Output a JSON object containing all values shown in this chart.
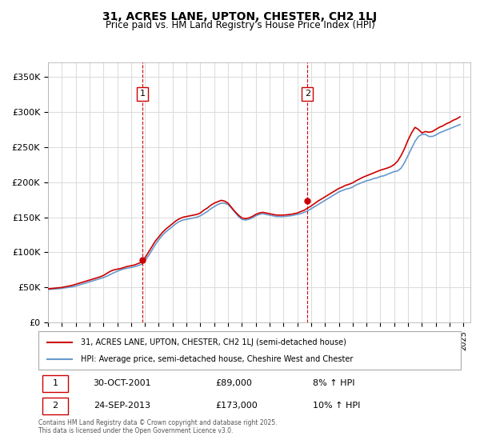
{
  "title_line1": "31, ACRES LANE, UPTON, CHESTER, CH2 1LJ",
  "title_line2": "Price paid vs. HM Land Registry's House Price Index (HPI)",
  "ylabel": "",
  "xlabel": "",
  "background_color": "#ffffff",
  "plot_bg_color": "#ffffff",
  "grid_color": "#dddddd",
  "hpi_color": "#6699cc",
  "price_color": "#cc0000",
  "vline_color": "#cc0000",
  "ylim": [
    0,
    370000
  ],
  "yticks": [
    0,
    50000,
    100000,
    150000,
    200000,
    250000,
    300000,
    350000
  ],
  "ytick_labels": [
    "£0",
    "£50K",
    "£100K",
    "£150K",
    "£200K",
    "£250K",
    "£300K",
    "£350K"
  ],
  "sale1_date": 2001.83,
  "sale1_price": 89000,
  "sale1_label": "1",
  "sale2_date": 2013.73,
  "sale2_price": 173000,
  "sale2_label": "2",
  "legend_line1": "31, ACRES LANE, UPTON, CHESTER, CH2 1LJ (semi-detached house)",
  "legend_line2": "HPI: Average price, semi-detached house, Cheshire West and Chester",
  "annotation1_date": "30-OCT-2001",
  "annotation1_price": "£89,000",
  "annotation1_hpi": "8% ↑ HPI",
  "annotation2_date": "24-SEP-2013",
  "annotation2_price": "£173,000",
  "annotation2_hpi": "10% ↑ HPI",
  "footnote": "Contains HM Land Registry data © Crown copyright and database right 2025.\nThis data is licensed under the Open Government Licence v3.0.",
  "hpi_data_x": [
    1995.0,
    1995.25,
    1995.5,
    1995.75,
    1996.0,
    1996.25,
    1996.5,
    1996.75,
    1997.0,
    1997.25,
    1997.5,
    1997.75,
    1998.0,
    1998.25,
    1998.5,
    1998.75,
    1999.0,
    1999.25,
    1999.5,
    1999.75,
    2000.0,
    2000.25,
    2000.5,
    2000.75,
    2001.0,
    2001.25,
    2001.5,
    2001.75,
    2002.0,
    2002.25,
    2002.5,
    2002.75,
    2003.0,
    2003.25,
    2003.5,
    2003.75,
    2004.0,
    2004.25,
    2004.5,
    2004.75,
    2005.0,
    2005.25,
    2005.5,
    2005.75,
    2006.0,
    2006.25,
    2006.5,
    2006.75,
    2007.0,
    2007.25,
    2007.5,
    2007.75,
    2008.0,
    2008.25,
    2008.5,
    2008.75,
    2009.0,
    2009.25,
    2009.5,
    2009.75,
    2010.0,
    2010.25,
    2010.5,
    2010.75,
    2011.0,
    2011.25,
    2011.5,
    2011.75,
    2012.0,
    2012.25,
    2012.5,
    2012.75,
    2013.0,
    2013.25,
    2013.5,
    2013.75,
    2014.0,
    2014.25,
    2014.5,
    2014.75,
    2015.0,
    2015.25,
    2015.5,
    2015.75,
    2016.0,
    2016.25,
    2016.5,
    2016.75,
    2017.0,
    2017.25,
    2017.5,
    2017.75,
    2018.0,
    2018.25,
    2018.5,
    2018.75,
    2019.0,
    2019.25,
    2019.5,
    2019.75,
    2020.0,
    2020.25,
    2020.5,
    2020.75,
    2021.0,
    2021.25,
    2021.5,
    2021.75,
    2022.0,
    2022.25,
    2022.5,
    2022.75,
    2023.0,
    2023.25,
    2023.5,
    2023.75,
    2024.0,
    2024.25,
    2024.5,
    2024.75
  ],
  "hpi_data_y": [
    47000,
    47500,
    47800,
    48200,
    48800,
    49500,
    50200,
    51000,
    52000,
    53500,
    55000,
    56500,
    58000,
    59500,
    61000,
    62500,
    64000,
    66000,
    68500,
    71000,
    73000,
    75000,
    76500,
    77500,
    78500,
    79500,
    81000,
    83000,
    88000,
    95000,
    103000,
    111000,
    118000,
    124000,
    129000,
    133000,
    137000,
    141000,
    144000,
    146000,
    147000,
    148000,
    149000,
    150000,
    152000,
    155000,
    158000,
    162000,
    165000,
    168000,
    170000,
    170000,
    168000,
    163000,
    157000,
    151000,
    147000,
    146000,
    147000,
    149000,
    152000,
    154000,
    155000,
    154000,
    153000,
    152000,
    151000,
    151000,
    151000,
    151500,
    152000,
    153000,
    154000,
    155000,
    157000,
    159000,
    162000,
    165000,
    168000,
    171000,
    174000,
    177000,
    180000,
    183000,
    186000,
    188000,
    190000,
    191000,
    193000,
    196000,
    198000,
    200000,
    202000,
    203000,
    205000,
    206000,
    208000,
    209000,
    211000,
    213000,
    215000,
    216000,
    220000,
    228000,
    238000,
    248000,
    258000,
    265000,
    268000,
    268000,
    265000,
    265000,
    267000,
    270000,
    272000,
    274000,
    276000,
    278000,
    280000,
    282000
  ],
  "price_data_x": [
    1995.0,
    1995.25,
    1995.5,
    1995.75,
    1996.0,
    1996.25,
    1996.5,
    1996.75,
    1997.0,
    1997.25,
    1997.5,
    1997.75,
    1998.0,
    1998.25,
    1998.5,
    1998.75,
    1999.0,
    1999.25,
    1999.5,
    1999.75,
    2000.0,
    2000.25,
    2000.5,
    2000.75,
    2001.0,
    2001.25,
    2001.5,
    2001.75,
    2002.0,
    2002.25,
    2002.5,
    2002.75,
    2003.0,
    2003.25,
    2003.5,
    2003.75,
    2004.0,
    2004.25,
    2004.5,
    2004.75,
    2005.0,
    2005.25,
    2005.5,
    2005.75,
    2006.0,
    2006.25,
    2006.5,
    2006.75,
    2007.0,
    2007.25,
    2007.5,
    2007.75,
    2008.0,
    2008.25,
    2008.5,
    2008.75,
    2009.0,
    2009.25,
    2009.5,
    2009.75,
    2010.0,
    2010.25,
    2010.5,
    2010.75,
    2011.0,
    2011.25,
    2011.5,
    2011.75,
    2012.0,
    2012.25,
    2012.5,
    2012.75,
    2013.0,
    2013.25,
    2013.5,
    2013.75,
    2014.0,
    2014.25,
    2014.5,
    2014.75,
    2015.0,
    2015.25,
    2015.5,
    2015.75,
    2016.0,
    2016.25,
    2016.5,
    2016.75,
    2017.0,
    2017.25,
    2017.5,
    2017.75,
    2018.0,
    2018.25,
    2018.5,
    2018.75,
    2019.0,
    2019.25,
    2019.5,
    2019.75,
    2020.0,
    2020.25,
    2020.5,
    2020.75,
    2021.0,
    2021.25,
    2021.5,
    2021.75,
    2022.0,
    2022.25,
    2022.5,
    2022.75,
    2023.0,
    2023.25,
    2023.5,
    2023.75,
    2024.0,
    2024.25,
    2024.5,
    2024.75
  ],
  "price_data_y": [
    48000,
    48500,
    49000,
    49500,
    50000,
    51000,
    52000,
    53000,
    54500,
    56000,
    57500,
    59000,
    60500,
    62000,
    63500,
    65000,
    67000,
    70000,
    73000,
    75000,
    76000,
    77000,
    78500,
    80000,
    81000,
    82000,
    84000,
    86000,
    92000,
    100000,
    108000,
    116000,
    122000,
    128000,
    133000,
    137000,
    141000,
    145000,
    148000,
    150000,
    151000,
    152000,
    153000,
    154000,
    156000,
    160000,
    163000,
    167000,
    170000,
    172000,
    174000,
    173000,
    170000,
    164000,
    158000,
    153000,
    149000,
    148000,
    149000,
    151000,
    154000,
    156000,
    157000,
    156000,
    155000,
    154000,
    153000,
    153000,
    153000,
    153500,
    154000,
    155000,
    156000,
    158000,
    160000,
    163000,
    166000,
    169500,
    173000,
    176000,
    179000,
    182000,
    185000,
    188000,
    191000,
    193000,
    195500,
    197000,
    199000,
    202000,
    204500,
    207000,
    209000,
    211000,
    213000,
    215000,
    217000,
    218500,
    220000,
    222000,
    225000,
    230000,
    238000,
    248000,
    260000,
    270000,
    278000,
    275000,
    270000,
    272000,
    271000,
    272000,
    275000,
    278000,
    280000,
    283000,
    285000,
    288000,
    290000,
    293000
  ]
}
